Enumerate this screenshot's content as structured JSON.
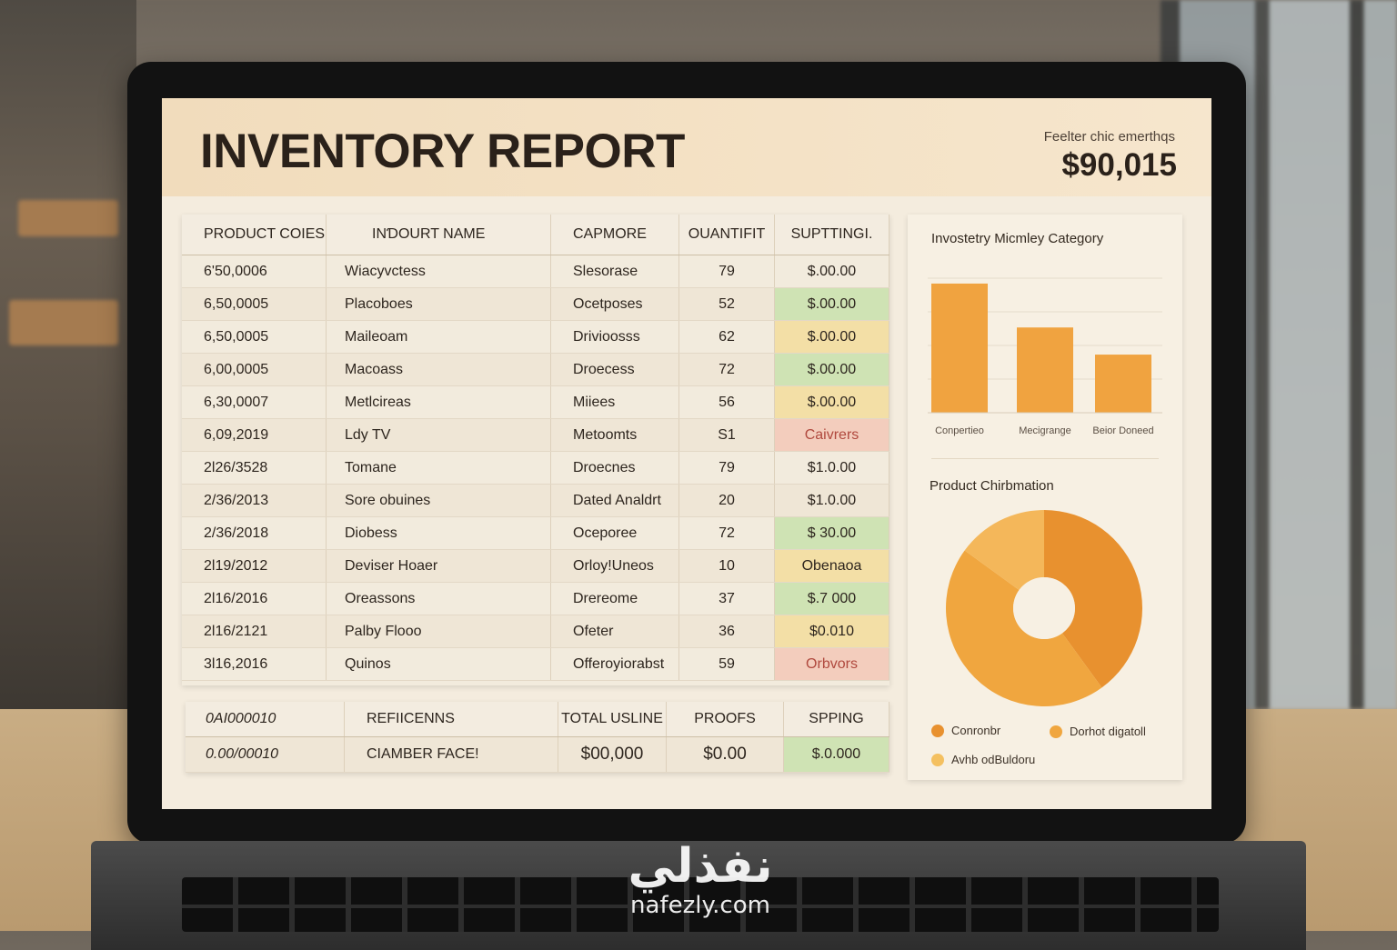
{
  "report": {
    "title": "INVENTORY REPORT",
    "total_label": "Feelter chic emerthqs",
    "total_value": "$90,015"
  },
  "table": {
    "headers": [
      "PRODUCT COIES",
      "INƊOURT NAME",
      "CAPMORE",
      "OUANTIFIT",
      "SUPTTINGI."
    ],
    "rows": [
      {
        "code": "6'50,0006",
        "name": "Wiacyvctess",
        "category": "Slesorase",
        "qty": "79",
        "amount": "$.00.00",
        "status": ""
      },
      {
        "code": "6,50,0005",
        "name": "Placoboes",
        "category": "Ocetposes",
        "qty": "52",
        "amount": "$.00.00",
        "status": "green"
      },
      {
        "code": "6,50,0005",
        "name": "Maileoam",
        "category": "Drivioosss",
        "qty": "62",
        "amount": "$.00.00",
        "status": "yellow"
      },
      {
        "code": "6,00,0005",
        "name": "Macoass",
        "category": "Droecess",
        "qty": "72",
        "amount": "$.00.00",
        "status": "green"
      },
      {
        "code": "6,30,0007",
        "name": "Metlcireas",
        "category": "Miiees",
        "qty": "56",
        "amount": "$.00.00",
        "status": "yellow"
      },
      {
        "code": "6,09,2019",
        "name": "Ldy TV",
        "category": "Metoomts",
        "qty": "S1",
        "amount": "Caivrers",
        "status": "red"
      },
      {
        "code": "2l26/3528",
        "name": "Tomane",
        "category": "Droecnes",
        "qty": "79",
        "amount": "$1.0.00",
        "status": ""
      },
      {
        "code": "2/36/2013",
        "name": "Sore obuines",
        "category": "Dated Analdrt",
        "qty": "20",
        "amount": "$1.0.00",
        "status": ""
      },
      {
        "code": "2/36/2018",
        "name": "Diobess",
        "category": "Oceporee",
        "qty": "72",
        "amount": "$ 30.00",
        "status": "green"
      },
      {
        "code": "2l19/2012",
        "name": "Deviser Hoaer",
        "category": "Orloy!Uneos",
        "qty": "10",
        "amount": "Obenaoa",
        "status": "yellow"
      },
      {
        "code": "2l16/2016",
        "name": "Oreassons",
        "category": "Drereome",
        "qty": "37",
        "amount": "$.7 000",
        "status": "green"
      },
      {
        "code": "2l16/2121",
        "name": "Palby Flooo",
        "category": "Ofeter",
        "qty": "36",
        "amount": "$0.010",
        "status": "yellow"
      },
      {
        "code": "3l16,2016",
        "name": "Quinos",
        "category": "Offeroyiorabst",
        "qty": "59",
        "amount": "Orbvors",
        "status": "red"
      }
    ]
  },
  "summary": {
    "headers": [
      "0AI000010",
      "REFIICENNS",
      "TOTAL USLINE",
      "PROOFS",
      "SPPING"
    ],
    "values": [
      "0.00/00010",
      "CIAMBER FACE!",
      "$00,000",
      "$0.00",
      "$.0.000"
    ]
  },
  "bar_chart": {
    "title": "Invostetry Micmley Category",
    "chart_data": {
      "type": "bar",
      "categories": [
        "Conpertieo",
        "Mecigrange",
        "Beior Doneed"
      ],
      "values": [
        100,
        66,
        45
      ],
      "ylim": [
        0,
        100
      ],
      "grid": true,
      "color": "#f0a340"
    }
  },
  "pie_chart": {
    "title": "Product Chirbmation",
    "chart_data": {
      "type": "pie",
      "labels": [
        "Conronbr",
        "Dorhot digatoll",
        "Avhb odBuldoru"
      ],
      "values": [
        40,
        45,
        15
      ],
      "colors": [
        "#e8912f",
        "#f0a63f",
        "#f4b75a"
      ],
      "donut": true
    },
    "legend_colors": [
      "#e8912f",
      "#f0a63f",
      "#f4c060"
    ]
  },
  "watermark": {
    "arabic": "نفذلي",
    "latin": "nafezly.com"
  }
}
